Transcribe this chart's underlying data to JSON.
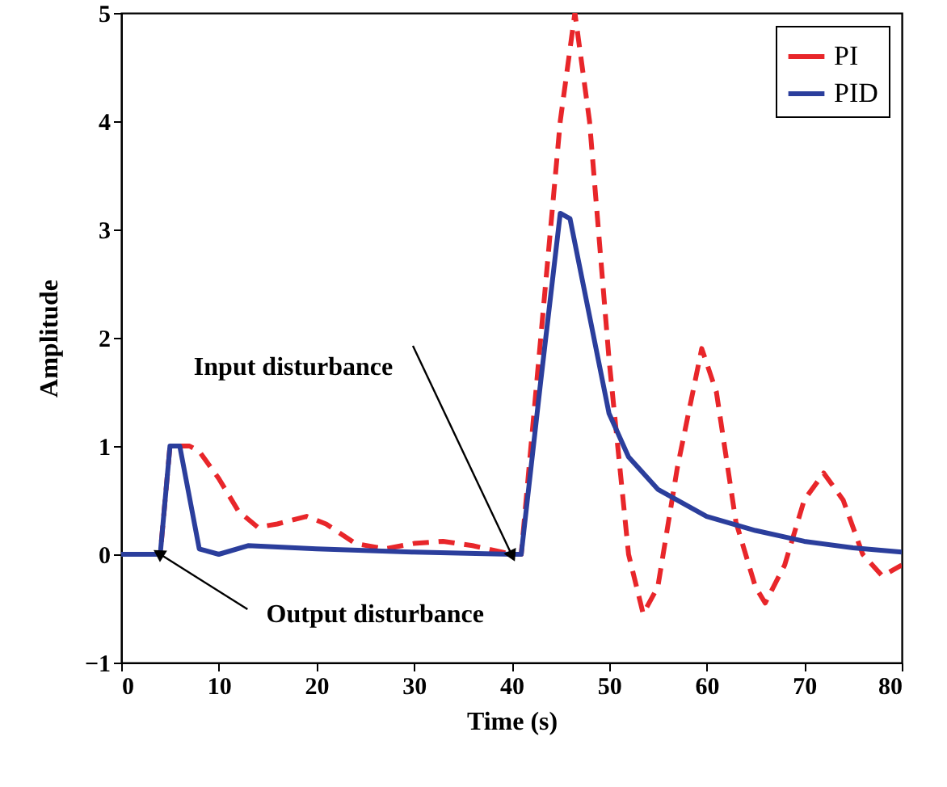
{
  "chart_data": {
    "type": "line",
    "xlabel": "Time (s)",
    "ylabel": "Amplitude",
    "xlim": [
      0,
      80
    ],
    "xticks": [
      0,
      10,
      20,
      30,
      40,
      50,
      60,
      70,
      80
    ],
    "ylim": [
      -1,
      5
    ],
    "yticks": [
      -1,
      0,
      1,
      2,
      3,
      4,
      5
    ],
    "grid": false,
    "legend": "top right",
    "annotations": [
      {
        "text": "Input disturbance",
        "x": 40,
        "y": 0
      },
      {
        "text": "Output disturbance",
        "x": 4,
        "y": 0
      }
    ],
    "series": [
      {
        "name": "PI",
        "color": "#e8262a",
        "line_style": "dashed",
        "x": [
          0,
          4,
          5,
          6,
          7,
          8,
          10,
          12,
          14,
          16,
          19,
          21,
          24,
          27,
          30,
          33,
          36,
          40,
          41,
          43,
          45,
          46.5,
          48,
          50,
          52,
          53.5,
          55,
          57,
          59.5,
          61,
          63,
          65,
          66,
          68,
          70,
          72,
          74,
          76,
          78,
          80
        ],
        "values": [
          0,
          0,
          1,
          1,
          1,
          0.95,
          0.7,
          0.4,
          0.25,
          0.28,
          0.35,
          0.28,
          0.1,
          0.05,
          0.1,
          0.12,
          0.08,
          0,
          0,
          2.0,
          4.0,
          5.0,
          4.0,
          1.8,
          0,
          -0.55,
          -0.3,
          0.8,
          1.9,
          1.5,
          0.3,
          -0.3,
          -0.45,
          -0.1,
          0.5,
          0.75,
          0.5,
          0,
          -0.2,
          -0.1
        ]
      },
      {
        "name": "PID",
        "color": "#2b3e9c",
        "line_style": "solid",
        "x": [
          0,
          4,
          5,
          6,
          8,
          10,
          13,
          20,
          30,
          40,
          41,
          43,
          45,
          46,
          48,
          50,
          52,
          55,
          60,
          65,
          70,
          75,
          80
        ],
        "values": [
          0,
          0,
          1,
          1,
          0.05,
          0,
          0.08,
          0.05,
          0.02,
          0,
          0,
          1.6,
          3.15,
          3.1,
          2.2,
          1.3,
          0.9,
          0.6,
          0.35,
          0.22,
          0.12,
          0.06,
          0.02
        ]
      }
    ]
  }
}
